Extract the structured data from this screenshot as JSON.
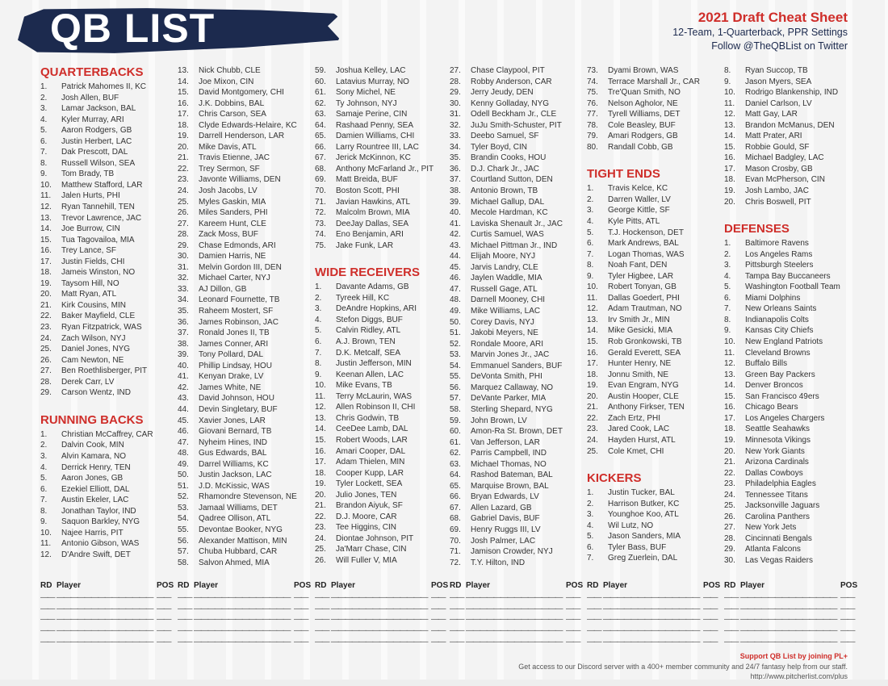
{
  "header": {
    "brand": "QB LIST",
    "title": "2021 Draft Cheat Sheet",
    "subtitle": "12-Team, 1-Quarterback, PPR Settings",
    "follow": "Follow @TheQBList on Twitter"
  },
  "colors": {
    "accent": "#cf2e2a",
    "navy": "#1c2a4e"
  },
  "sections": {
    "qb": {
      "title": "QUARTERBACKS",
      "players": [
        "Patrick Mahomes II, KC",
        "Josh Allen, BUF",
        "Lamar Jackson, BAL",
        "Kyler Murray, ARI",
        "Aaron Rodgers, GB",
        "Justin Herbert, LAC",
        "Dak Prescott, DAL",
        "Russell Wilson, SEA",
        "Tom Brady, TB",
        "Matthew Stafford, LAR",
        "Jalen Hurts, PHI",
        "Ryan Tannehill, TEN",
        "Trevor Lawrence, JAC",
        "Joe Burrow, CIN",
        "Tua Tagovailoa, MIA",
        "Trey Lance, SF",
        "Justin Fields, CHI",
        "Jameis Winston, NO",
        "Taysom Hill, NO",
        "Matt Ryan, ATL",
        "Kirk Cousins, MIN",
        "Baker Mayfield, CLE",
        "Ryan Fitzpatrick, WAS",
        "Zach Wilson, NYJ",
        "Daniel Jones, NYG",
        "Cam Newton, NE",
        "Ben Roethlisberger, PIT",
        "Derek Carr, LV",
        "Carson Wentz, IND"
      ]
    },
    "rb": {
      "title": "RUNNING BACKS",
      "players": [
        "Christian McCaffrey, CAR",
        "Dalvin Cook, MIN",
        "Alvin Kamara, NO",
        "Derrick Henry, TEN",
        "Aaron Jones, GB",
        "Ezekiel Elliott, DAL",
        "Austin Ekeler, LAC",
        "Jonathan Taylor, IND",
        "Saquon Barkley, NYG",
        "Najee Harris, PIT",
        "Antonio Gibson, WAS",
        "D'Andre Swift, DET",
        "Nick Chubb, CLE",
        "Joe Mixon, CIN",
        "David Montgomery, CHI",
        "J.K. Dobbins, BAL",
        "Chris Carson, SEA",
        "Clyde Edwards-Helaire, KC",
        "Darrell Henderson, LAR",
        "Mike Davis, ATL",
        "Travis Etienne, JAC",
        "Trey Sermon, SF",
        "Javonte Williams, DEN",
        "Josh Jacobs, LV",
        "Myles Gaskin, MIA",
        "Miles Sanders, PHI",
        "Kareem Hunt, CLE",
        "Zack Moss, BUF",
        "Chase Edmonds, ARI",
        "Damien Harris, NE",
        "Melvin Gordon III, DEN",
        "Michael Carter, NYJ",
        "AJ Dillon, GB",
        "Leonard Fournette, TB",
        "Raheem Mostert, SF",
        "James Robinson, JAC",
        "Ronald Jones II, TB",
        "James Conner, ARI",
        "Tony Pollard, DAL",
        "Phillip Lindsay, HOU",
        "Kenyan Drake, LV",
        "James White, NE",
        "David Johnson, HOU",
        "Devin Singletary, BUF",
        "Xavier Jones, LAR",
        "Giovani Bernard, TB",
        "Nyheim Hines, IND",
        "Gus Edwards, BAL",
        "Darrel Williams, KC",
        "Justin Jackson, LAC",
        "J.D. McKissic, WAS",
        "Rhamondre Stevenson, NE",
        "Jamaal Williams, DET",
        "Qadree Ollison, ATL",
        "Devontae Booker, NYG",
        "Alexander Mattison, MIN",
        "Chuba Hubbard, CAR",
        "Salvon Ahmed, MIA",
        "Joshua Kelley, LAC",
        "Latavius Murray, NO",
        "Sony Michel, NE",
        "Ty Johnson, NYJ",
        "Samaje Perine, CIN",
        "Rashaad Penny, SEA",
        "Damien Williams, CHI",
        "Larry Rountree III, LAC",
        "Jerick McKinnon, KC",
        "Anthony McFarland Jr., PIT",
        "Matt Breida, BUF",
        "Boston Scott, PHI",
        "Javian Hawkins, ATL",
        "Malcolm Brown, MIA",
        "DeeJay Dallas, SEA",
        "Eno Benjamin, ARI",
        "Jake Funk, LAR"
      ]
    },
    "wr": {
      "title": "WIDE RECEIVERS",
      "players": [
        "Davante Adams, GB",
        "Tyreek Hill, KC",
        "DeAndre Hopkins, ARI",
        "Stefon Diggs, BUF",
        "Calvin Ridley, ATL",
        "A.J. Brown, TEN",
        "D.K. Metcalf, SEA",
        "Justin Jefferson, MIN",
        "Keenan Allen, LAC",
        "Mike Evans, TB",
        "Terry McLaurin, WAS",
        "Allen Robinson II, CHI",
        "Chris Godwin, TB",
        "CeeDee Lamb, DAL",
        "Robert Woods, LAR",
        "Amari Cooper, DAL",
        "Adam Thielen, MIN",
        "Cooper Kupp, LAR",
        "Tyler Lockett, SEA",
        "Julio Jones, TEN",
        "Brandon Aiyuk, SF",
        "D.J. Moore, CAR",
        "Tee Higgins, CIN",
        "Diontae Johnson, PIT",
        "Ja'Marr Chase, CIN",
        "Will Fuller V, MIA",
        "Chase Claypool, PIT",
        "Robby Anderson, CAR",
        "Jerry Jeudy, DEN",
        "Kenny Golladay, NYG",
        "Odell Beckham Jr., CLE",
        "JuJu Smith-Schuster, PIT",
        "Deebo Samuel, SF",
        "Tyler Boyd, CIN",
        "Brandin Cooks, HOU",
        "D.J. Chark Jr., JAC",
        "Courtland Sutton, DEN",
        "Antonio Brown, TB",
        "Michael Gallup, DAL",
        "Mecole Hardman, KC",
        "Laviska Shenault Jr., JAC",
        "Curtis Samuel, WAS",
        "Michael Pittman Jr., IND",
        "Elijah Moore, NYJ",
        "Jarvis Landry, CLE",
        "Jaylen Waddle, MIA",
        "Russell Gage, ATL",
        "Darnell Mooney, CHI",
        "Mike Williams, LAC",
        "Corey Davis, NYJ",
        "Jakobi Meyers, NE",
        "Rondale Moore, ARI",
        "Marvin Jones Jr., JAC",
        "Emmanuel Sanders, BUF",
        "DeVonta Smith, PHI",
        "Marquez Callaway, NO",
        "DeVante Parker, MIA",
        "Sterling Shepard, NYG",
        "John Brown, LV",
        "Amon-Ra St. Brown, DET",
        "Van Jefferson, LAR",
        "Parris Campbell, IND",
        "Michael Thomas, NO",
        "Rashod Bateman, BAL",
        "Marquise Brown, BAL",
        "Bryan Edwards, LV",
        "Allen Lazard, GB",
        "Gabriel Davis, BUF",
        "Henry Ruggs III, LV",
        "Josh Palmer, LAC",
        "Jamison Crowder, NYJ",
        "T.Y. Hilton, IND",
        "Dyami Brown, WAS",
        "Terrace Marshall Jr., CAR",
        "Tre'Quan Smith, NO",
        "Nelson Agholor, NE",
        "Tyrell Williams, DET",
        "Cole Beasley, BUF",
        "Amari Rodgers, GB",
        "Randall Cobb, GB"
      ]
    },
    "te": {
      "title": "TIGHT ENDS",
      "players": [
        "Travis Kelce, KC",
        "Darren Waller, LV",
        "George Kittle, SF",
        "Kyle Pitts, ATL",
        "T.J. Hockenson, DET",
        "Mark Andrews, BAL",
        "Logan Thomas, WAS",
        "Noah Fant, DEN",
        "Tyler Higbee, LAR",
        "Robert Tonyan, GB",
        "Dallas Goedert, PHI",
        "Adam Trautman, NO",
        "Irv Smith Jr., MIN",
        "Mike Gesicki, MIA",
        "Rob Gronkowski, TB",
        "Gerald Everett, SEA",
        "Hunter Henry, NE",
        "Jonnu Smith, NE",
        "Evan Engram, NYG",
        "Austin Hooper, CLE",
        "Anthony Firkser, TEN",
        "Zach Ertz, PHI",
        "Jared Cook, LAC",
        "Hayden Hurst, ATL",
        "Cole Kmet, CHI"
      ]
    },
    "k": {
      "title": "KICKERS",
      "players": [
        "Justin Tucker, BAL",
        "Harrison Butker, KC",
        "Younghoe Koo, ATL",
        "Wil Lutz, NO",
        "Jason Sanders, MIA",
        "Tyler Bass, BUF",
        "Greg Zuerlein, DAL",
        "Ryan Succop, TB",
        "Jason Myers, SEA",
        "Rodrigo Blankenship, IND",
        "Daniel Carlson, LV",
        "Matt Gay, LAR",
        "Brandon McManus, DEN",
        "Matt Prater, ARI",
        "Robbie Gould, SF",
        "Michael Badgley, LAC",
        "Mason Crosby, GB",
        "Evan McPherson, CIN",
        "Josh Lambo, JAC",
        "Chris Boswell, PIT"
      ]
    },
    "def": {
      "title": "DEFENSES",
      "players": [
        "Baltimore Ravens",
        "Los Angeles Rams",
        "Pittsburgh Steelers",
        "Tampa Bay Buccaneers",
        "Washington Football Team",
        "Miami Dolphins",
        "New Orleans Saints",
        "Indianapolis Colts",
        "Kansas City Chiefs",
        "New England Patriots",
        "Cleveland Browns",
        "Buffalo Bills",
        "Green Bay Packers",
        "Denver Broncos",
        "San Francisco 49ers",
        "Chicago Bears",
        "Los Angeles Chargers",
        "Seattle Seahawks",
        "Minnesota Vikings",
        "New York Giants",
        "Arizona Cardinals",
        "Dallas Cowboys",
        "Philadelphia Eagles",
        "Tennessee Titans",
        "Jacksonville Jaguars",
        "Carolina Panthers",
        "New York Jets",
        "Cincinnati Bengals",
        "Atlanta Falcons",
        "Las Vegas Raiders"
      ]
    }
  },
  "tracker": {
    "headers": {
      "rd": "RD",
      "player": "Player",
      "pos": "POS"
    },
    "blank": {
      "rd": "——",
      "player": "——————————————",
      "pos": "——"
    }
  },
  "footer": {
    "support": "Support QB List by joining PL+",
    "description": "Get access to our Discord server with a 400+ member community and 24/7 fantasy help from our staff.",
    "url": "http://www.pitcherlist.com/plus"
  }
}
